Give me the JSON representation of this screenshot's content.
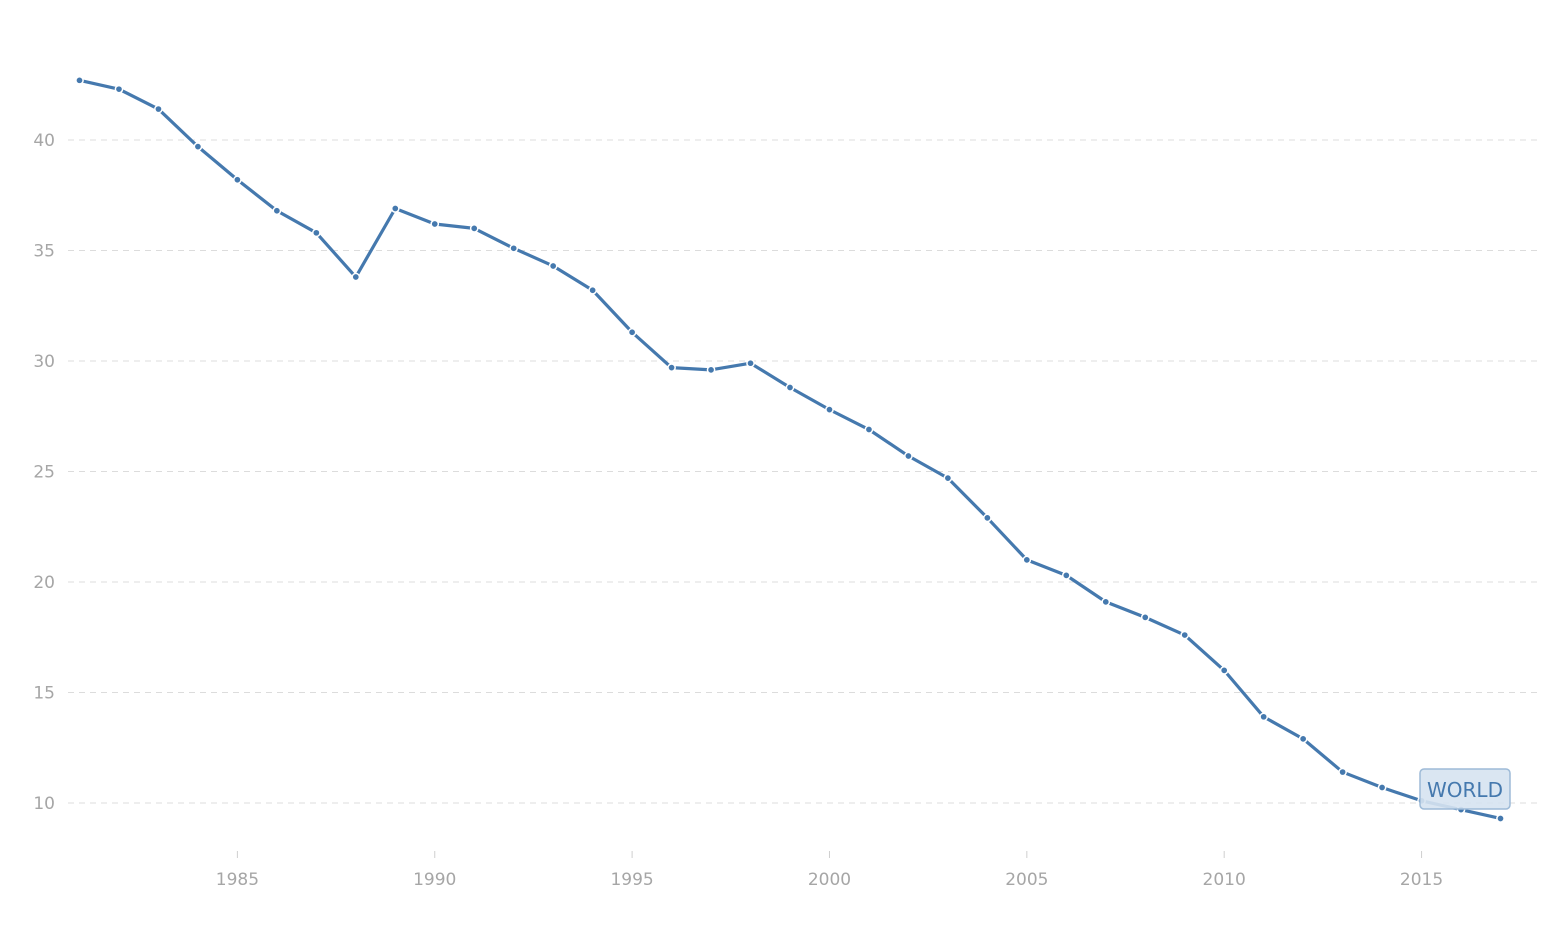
{
  "chart_data": {
    "type": "line",
    "title": "",
    "xlabel": "",
    "ylabel": "",
    "xlim": [
      1981,
      2017
    ],
    "ylim": [
      8.2,
      44.5
    ],
    "x_ticks": [
      1985,
      1990,
      1995,
      2000,
      2005,
      2010,
      2015
    ],
    "y_ticks": [
      10,
      15,
      20,
      25,
      30,
      35,
      40
    ],
    "grid": "horizontal-dashed",
    "series": [
      {
        "name": "WORLD",
        "color": "#4579ae",
        "label_box_fill": "#d6e3f1",
        "label_box_stroke": "#9dbad7",
        "x": [
          1981,
          1982,
          1983,
          1984,
          1985,
          1986,
          1987,
          1988,
          1989,
          1990,
          1991,
          1992,
          1993,
          1994,
          1995,
          1996,
          1997,
          1998,
          1999,
          2000,
          2001,
          2002,
          2003,
          2004,
          2005,
          2006,
          2007,
          2008,
          2009,
          2010,
          2011,
          2012,
          2013,
          2014,
          2015,
          2016,
          2017
        ],
        "values": [
          42.7,
          42.3,
          41.4,
          39.7,
          38.2,
          36.8,
          35.8,
          33.8,
          36.9,
          36.2,
          36.0,
          35.1,
          34.3,
          33.2,
          31.3,
          29.7,
          29.6,
          29.9,
          28.8,
          27.8,
          26.9,
          25.7,
          24.7,
          22.9,
          21.0,
          20.3,
          19.1,
          18.4,
          17.6,
          16.0,
          13.9,
          12.9,
          11.4,
          10.7,
          10.1,
          9.7,
          9.3
        ]
      }
    ]
  }
}
